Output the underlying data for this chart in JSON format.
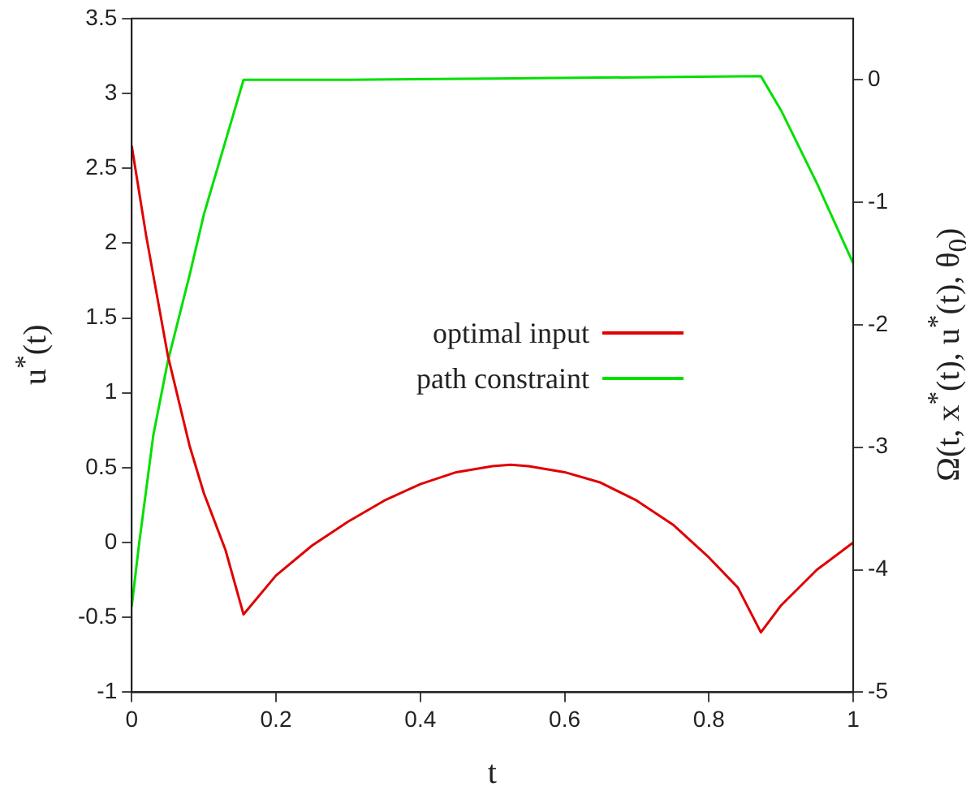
{
  "chart_data": {
    "type": "line",
    "xlabel": "t",
    "ylabel": "u$^{*}$(t)",
    "y2label": "Ω(t, x$^{*}$(t), u$^{*}$(t), θ$_{0}$)",
    "xlim": [
      0,
      1
    ],
    "xticks": [
      0,
      0.2,
      0.4,
      0.6,
      0.8,
      1
    ],
    "ylim": [
      -1,
      3.5
    ],
    "yticks": [
      -1,
      -0.5,
      0,
      0.5,
      1,
      1.5,
      2,
      2.5,
      3,
      3.5
    ],
    "y2lim": [
      -5,
      0.5
    ],
    "y2ticks": [
      -5,
      -4,
      -3,
      -2,
      -1,
      0
    ],
    "grid": false,
    "legend": "center right",
    "marker": "none",
    "line_style": "solid",
    "series": [
      {
        "name": "optimal input",
        "color": "#e00000",
        "x": [
          0,
          0.02,
          0.05,
          0.08,
          0.1,
          0.13,
          0.155,
          0.2,
          0.25,
          0.3,
          0.35,
          0.4,
          0.45,
          0.5,
          0.525,
          0.55,
          0.6,
          0.65,
          0.7,
          0.75,
          0.8,
          0.84,
          0.872,
          0.9,
          0.95,
          1
        ],
        "values": [
          2.65,
          2.05,
          1.25,
          0.65,
          0.33,
          -0.05,
          -0.48,
          -0.22,
          -0.02,
          0.14,
          0.28,
          0.39,
          0.47,
          0.51,
          0.52,
          0.51,
          0.47,
          0.4,
          0.28,
          0.12,
          -0.1,
          -0.3,
          -0.6,
          -0.42,
          -0.18,
          0.0
        ]
      },
      {
        "name": "path constraint",
        "color": "#00e000",
        "axis": "y2",
        "x": [
          0,
          0.01,
          0.03,
          0.05,
          0.08,
          0.1,
          0.13,
          0.155,
          0.3,
          0.5,
          0.7,
          0.872,
          0.9,
          0.95,
          1
        ],
        "values": [
          -4.3,
          -3.8,
          -2.9,
          -2.3,
          -1.6,
          -1.1,
          -0.5,
          0.0,
          0.0,
          0.01,
          0.02,
          0.03,
          -0.25,
          -0.85,
          -1.5
        ]
      }
    ]
  }
}
